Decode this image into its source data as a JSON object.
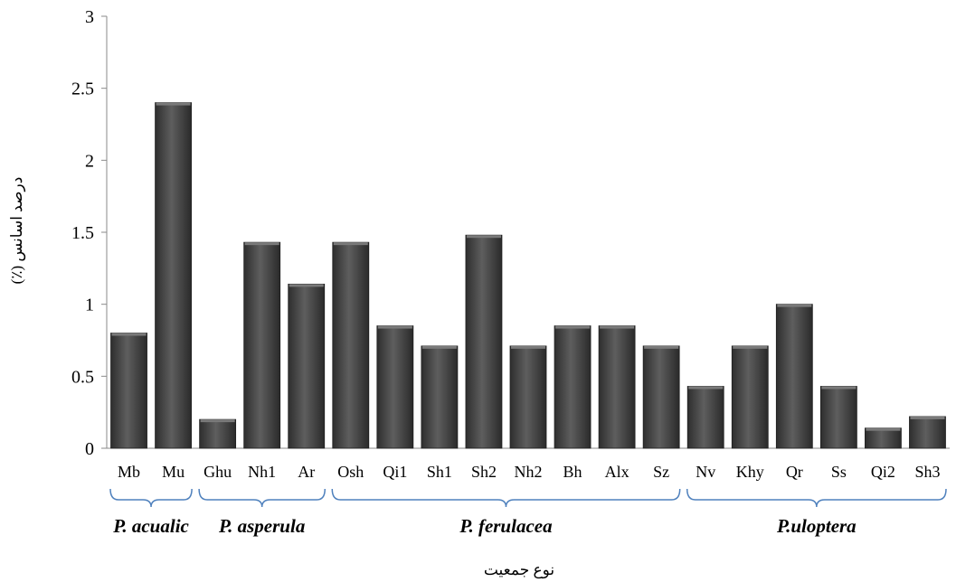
{
  "chart_data": {
    "type": "bar",
    "title": "",
    "xlabel": "نوع جمعیت",
    "ylabel": "درصد اسانس (٪)",
    "ylim": [
      0,
      3
    ],
    "yticks": [
      "0",
      "0.5",
      "1",
      "1.5",
      "2",
      "2.5",
      "3"
    ],
    "grid": false,
    "legend": "none",
    "categories": [
      "Mb",
      "Mu",
      "Ghu",
      "Nh1",
      "Ar",
      "Osh",
      "Qi1",
      "Sh1",
      "Sh2",
      "Nh2",
      "Bh",
      "Alx",
      "Sz",
      "Nv",
      "Khy",
      "Qr",
      "Ss",
      "Qi2",
      "Sh3"
    ],
    "values": [
      0.8,
      2.4,
      0.2,
      1.43,
      1.14,
      1.43,
      0.85,
      0.71,
      1.48,
      0.71,
      0.85,
      0.85,
      0.71,
      0.43,
      0.71,
      1.0,
      0.43,
      0.14,
      0.22
    ],
    "groups": [
      {
        "label": "P. acualic",
        "start": 0,
        "end": 1
      },
      {
        "label": "P. asperula",
        "start": 2,
        "end": 4
      },
      {
        "label": "P. ferulacea",
        "start": 5,
        "end": 12
      },
      {
        "label": "P.uloptera",
        "start": 13,
        "end": 18
      }
    ],
    "bar_color": "#4a4a4a",
    "bracket_color": "#4f81bd"
  }
}
